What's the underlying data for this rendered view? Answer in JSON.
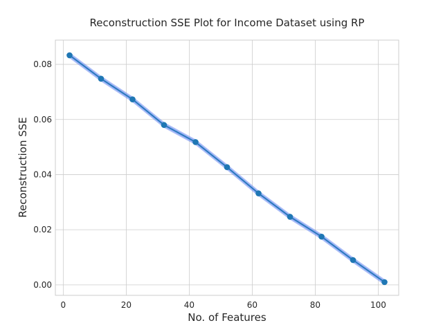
{
  "chart_data": {
    "type": "line",
    "title": "Reconstruction SSE Plot for Income Dataset using RP",
    "xlabel": "No. of Features",
    "ylabel": "Reconstruction SSE",
    "xlim": [
      -2.5,
      106.5
    ],
    "ylim": [
      -0.0038,
      0.0888
    ],
    "x_ticks": [
      0,
      20,
      40,
      60,
      80,
      100
    ],
    "y_ticks": [
      0.0,
      0.02,
      0.04,
      0.06,
      0.08
    ],
    "y_tick_labels": [
      "0.00",
      "0.02",
      "0.04",
      "0.06",
      "0.08"
    ],
    "grid": true,
    "x": [
      2,
      12,
      22,
      32,
      42,
      52,
      62,
      72,
      82,
      92,
      102
    ],
    "series": [
      {
        "values": [
          0.0833,
          0.0748,
          0.0673,
          0.058,
          0.0518,
          0.0427,
          0.0332,
          0.0247,
          0.0175,
          0.009,
          0.001
        ],
        "band": 0.0006,
        "color": "#1f77b4",
        "band_color": "#6f8ff0"
      }
    ]
  }
}
